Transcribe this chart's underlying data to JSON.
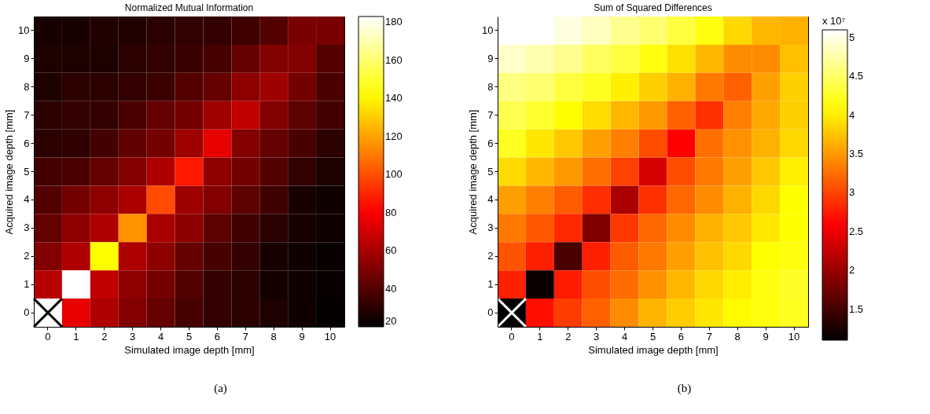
{
  "chart_data": [
    {
      "type": "heatmap",
      "title": "Normalized Mutual Information",
      "xlabel": "Simulated image depth [mm]",
      "ylabel": "Acquired image depth [mm]",
      "categories": [
        "0",
        "1",
        "2",
        "3",
        "4",
        "5",
        "6",
        "7",
        "8",
        "9",
        "10"
      ],
      "y_categories": [
        "10",
        "9",
        "8",
        "7",
        "6",
        "5",
        "4",
        "3",
        "2",
        "1",
        "0"
      ],
      "cells": [
        [
          26,
          26,
          28,
          28,
          30,
          32,
          32,
          35,
          40,
          49,
          49
        ],
        [
          27,
          27,
          27,
          30,
          32,
          34,
          37,
          44,
          51,
          51,
          40
        ],
        [
          27,
          30,
          30,
          32,
          34,
          40,
          44,
          54,
          58,
          48,
          38
        ],
        [
          30,
          32,
          32,
          38,
          44,
          48,
          58,
          66,
          51,
          42,
          36
        ],
        [
          30,
          31,
          36,
          43,
          48,
          58,
          75,
          51,
          44,
          38,
          30
        ],
        [
          36,
          38,
          44,
          51,
          62,
          87,
          54,
          48,
          40,
          32,
          27
        ],
        [
          40,
          48,
          54,
          61,
          99,
          58,
          51,
          42,
          35,
          26,
          24
        ],
        [
          44,
          54,
          62,
          116,
          61,
          54,
          42,
          35,
          30,
          26,
          24
        ],
        [
          51,
          62,
          142,
          62,
          54,
          44,
          37,
          32,
          26,
          24,
          22
        ],
        [
          64,
          183,
          66,
          54,
          48,
          40,
          32,
          30,
          25,
          24,
          22
        ],
        [
          183,
          75,
          62,
          51,
          44,
          37,
          32,
          30,
          27,
          24,
          21
        ]
      ],
      "clim": [
        20,
        183
      ],
      "cticks": [
        20,
        40,
        60,
        80,
        100,
        120,
        140,
        160,
        180
      ],
      "annotations": [
        "(a)"
      ]
    },
    {
      "type": "heatmap",
      "title": "Sum of Squared Differences",
      "xlabel": "Simulated image depth [mm]",
      "ylabel": "Acquired image depth [mm]",
      "categories": [
        "0",
        "1",
        "2",
        "3",
        "4",
        "5",
        "6",
        "7",
        "8",
        "9",
        "10"
      ],
      "y_categories": [
        "10",
        "9",
        "8",
        "7",
        "6",
        "5",
        "4",
        "3",
        "2",
        "1",
        "0"
      ],
      "cells": [
        [
          5.1,
          5.1,
          4.98,
          4.85,
          4.66,
          4.54,
          4.35,
          4.16,
          3.87,
          3.68,
          3.64
        ],
        [
          4.9,
          4.8,
          4.66,
          4.48,
          4.35,
          4.16,
          3.92,
          3.68,
          3.42,
          3.42,
          3.73
        ],
        [
          4.6,
          4.54,
          4.35,
          4.23,
          4.01,
          3.82,
          3.64,
          3.31,
          3.17,
          3.54,
          3.82
        ],
        [
          4.41,
          4.29,
          4.1,
          3.9,
          3.68,
          3.49,
          3.17,
          2.88,
          3.35,
          3.59,
          3.82
        ],
        [
          4.23,
          3.96,
          3.78,
          3.54,
          3.35,
          3.05,
          2.6,
          3.26,
          3.45,
          3.64,
          3.87
        ],
        [
          3.89,
          3.68,
          3.49,
          3.26,
          2.98,
          2.35,
          3.05,
          3.31,
          3.54,
          3.78,
          4.01
        ],
        [
          3.54,
          3.35,
          3.14,
          2.86,
          2.1,
          2.88,
          3.21,
          3.42,
          3.64,
          3.87,
          4.1
        ],
        [
          3.31,
          3.12,
          2.84,
          1.85,
          2.93,
          3.21,
          3.42,
          3.64,
          3.78,
          3.96,
          4.1
        ],
        [
          3.09,
          2.79,
          1.54,
          2.79,
          3.14,
          3.31,
          3.54,
          3.73,
          3.87,
          4.1,
          4.16
        ],
        [
          2.79,
          1.16,
          2.76,
          3.05,
          3.24,
          3.45,
          3.68,
          3.87,
          4.0,
          4.16,
          4.26
        ],
        [
          1.1,
          2.69,
          2.95,
          3.17,
          3.42,
          3.66,
          3.8,
          3.96,
          4.07,
          4.16,
          4.23
        ]
      ],
      "clim": [
        1.1,
        5.1
      ],
      "cticks": [
        1.5,
        2,
        2.5,
        3,
        3.5,
        4,
        4.5,
        5
      ],
      "annotations": [
        "x 10⁷",
        "(b)"
      ]
    }
  ]
}
